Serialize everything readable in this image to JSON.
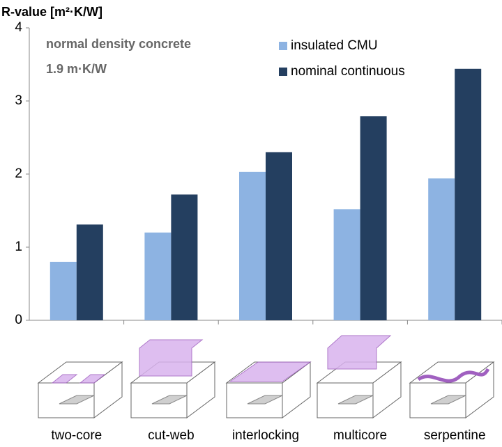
{
  "chart_data": {
    "type": "bar",
    "title": "R-value [m²·K/W]",
    "annotations": [
      "normal density concrete",
      "1.9 m·K/W"
    ],
    "categories": [
      "two-core",
      "cut-web",
      "interlocking",
      "multicore",
      "serpentine"
    ],
    "series": [
      {
        "name": "insulated CMU",
        "color": "#8db3e2",
        "values": [
          0.8,
          1.2,
          2.03,
          1.52,
          1.94
        ]
      },
      {
        "name": "nominal continuous",
        "color": "#243f60",
        "values": [
          1.31,
          1.72,
          2.3,
          2.79,
          3.44
        ]
      }
    ],
    "ylim": [
      0,
      4
    ],
    "yticks": [
      0,
      1,
      2,
      3,
      4
    ],
    "grid": false,
    "legend": "top-right"
  }
}
